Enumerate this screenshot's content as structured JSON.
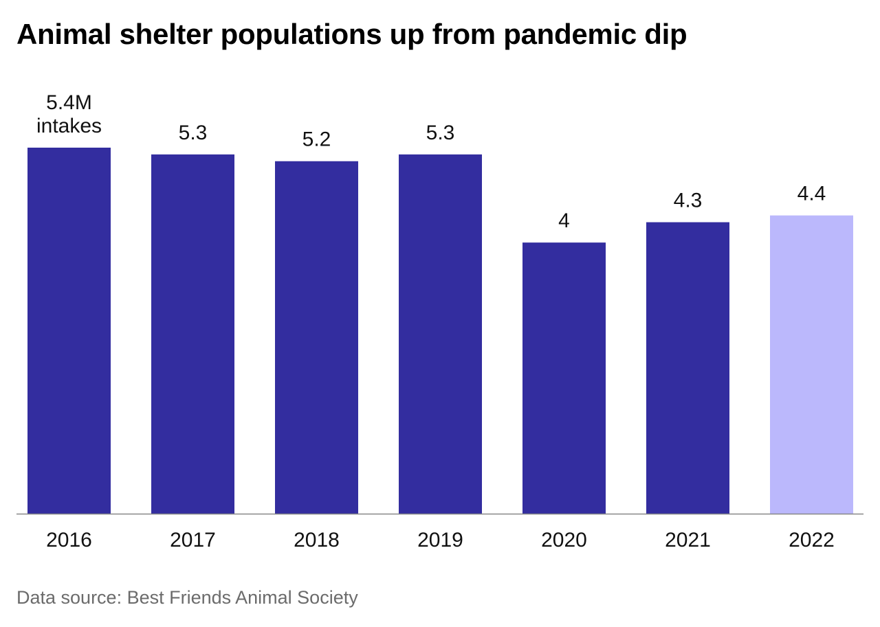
{
  "chart_data": {
    "type": "bar",
    "title": "Animal shelter populations up from pandemic dip",
    "categories": [
      "2016",
      "2017",
      "2018",
      "2019",
      "2020",
      "2021",
      "2022"
    ],
    "values": [
      5.4,
      5.3,
      5.2,
      5.3,
      4.0,
      4.3,
      4.4
    ],
    "data_labels": [
      "5.4M\nintakes",
      "5.3",
      "5.2",
      "5.3",
      "4",
      "4.3",
      "4.4"
    ],
    "xlabel": "",
    "ylabel": "",
    "ylim": [
      0,
      5.4
    ],
    "grid": false,
    "colors": {
      "default": "#332D9F",
      "highlight": "#BBB8FC",
      "axis": "#888888"
    },
    "highlight_category": "2022",
    "source": "Data source: Best Friends Animal Society"
  }
}
